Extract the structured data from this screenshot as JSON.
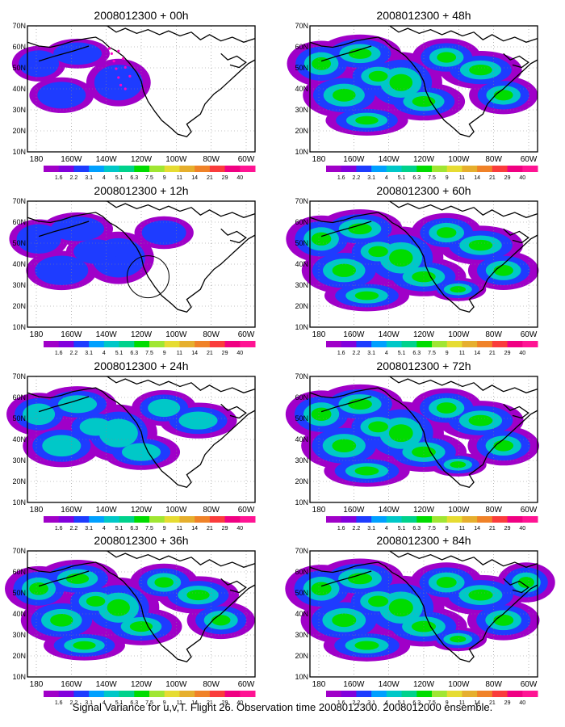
{
  "figure": {
    "caption": "Signal Variance for u,v,T. Flight 26. Observation time 2008012300. 2008012000 ensemble.",
    "panels": [
      {
        "title": "2008012300  + 00h",
        "circle": false,
        "dots": true,
        "coverage": 0.3
      },
      {
        "title": "2008012300  + 48h",
        "circle": false,
        "dots": false,
        "coverage": 0.85
      },
      {
        "title": "2008012300  + 12h",
        "circle": true,
        "dots": false,
        "coverage": 0.5
      },
      {
        "title": "2008012300  + 60h",
        "circle": false,
        "dots": false,
        "coverage": 0.92
      },
      {
        "title": "2008012300  + 24h",
        "circle": false,
        "dots": false,
        "coverage": 0.7
      },
      {
        "title": "2008012300  + 72h",
        "circle": false,
        "dots": false,
        "coverage": 0.95
      },
      {
        "title": "2008012300  + 36h",
        "circle": false,
        "dots": false,
        "coverage": 0.82
      },
      {
        "title": "2008012300  + 84h",
        "circle": false,
        "dots": false,
        "coverage": 0.98
      }
    ],
    "lat_ticks": [
      "70N",
      "60N",
      "50N",
      "40N",
      "30N",
      "20N",
      "10N"
    ],
    "lon_ticks": [
      "180",
      "160W",
      "140W",
      "120W",
      "100W",
      "80W",
      "60W"
    ],
    "colorbar": {
      "labels": [
        "1.6",
        "2.2",
        "3.1",
        "4",
        "5.1",
        "6.3",
        "7.5",
        "9",
        "11",
        "14",
        "21",
        "29",
        "40"
      ],
      "colors": [
        "#a000c8",
        "#8200dc",
        "#1e3cff",
        "#00a0ff",
        "#00c8c8",
        "#00d28c",
        "#00dc00",
        "#a0e632",
        "#e6dc32",
        "#e6af2d",
        "#f08228",
        "#fa3c3c",
        "#f00082",
        "#ff1493"
      ]
    },
    "map_colors": {
      "land_outline": "#000000",
      "grid": "#888888",
      "dots": "#ff00c8"
    }
  }
}
